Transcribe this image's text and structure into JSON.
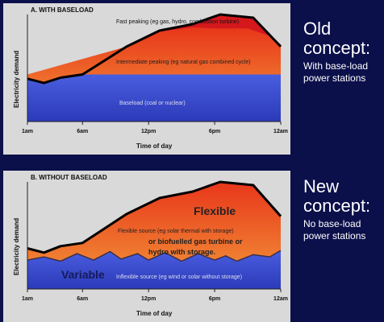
{
  "chart_data": [
    {
      "type": "area",
      "title": "A. WITH BASELOAD",
      "xlabel": "Time of day",
      "ylabel": "Electricity demand",
      "x_ticks": [
        "1am",
        "6am",
        "12pm",
        "6pm",
        "12am"
      ],
      "series": [
        {
          "name": "Baseload (coal or nuclear)",
          "color": "#3b4fd0",
          "level": 0.44
        },
        {
          "name": "Intermediate peaking (eg natural gas combined cycle)",
          "color": "#ee6a18"
        },
        {
          "name": "Fast peaking (eg gas, hydro, combustion turbine)",
          "color": "#d4181c"
        }
      ],
      "demand_curve": [
        [
          0,
          0.4
        ],
        [
          1.5,
          0.36
        ],
        [
          3,
          0.41
        ],
        [
          5,
          0.44
        ],
        [
          9,
          0.7
        ],
        [
          12,
          0.85
        ],
        [
          15,
          0.91
        ],
        [
          17.5,
          1.0
        ],
        [
          20.5,
          0.97
        ],
        [
          23,
          0.7
        ]
      ],
      "intermediate_cap": [
        [
          0,
          0.44
        ],
        [
          9,
          0.7
        ],
        [
          12,
          0.84
        ],
        [
          15,
          0.88
        ],
        [
          17,
          0.87
        ],
        [
          20,
          0.87
        ],
        [
          22,
          0.8
        ],
        [
          23,
          0.72
        ]
      ]
    },
    {
      "type": "area",
      "title": "B. WITHOUT BASELOAD",
      "xlabel": "Time of day",
      "ylabel": "Electricity demand",
      "x_ticks": [
        "1am",
        "6am",
        "12pm",
        "6pm",
        "12am"
      ],
      "series": [
        {
          "name": "Inflexible source (eg wind or solar without storage)",
          "color": "#3b4fd0"
        },
        {
          "name": "Flexible source (eg solar thermal with storage)",
          "color": "#ee6a18"
        }
      ],
      "demand_curve": [
        [
          0,
          0.38
        ],
        [
          1.5,
          0.34
        ],
        [
          3,
          0.4
        ],
        [
          5,
          0.43
        ],
        [
          9,
          0.7
        ],
        [
          12,
          0.85
        ],
        [
          15,
          0.91
        ],
        [
          17.5,
          1.0
        ],
        [
          20.5,
          0.97
        ],
        [
          23,
          0.68
        ]
      ],
      "variable_line": [
        [
          0,
          0.27
        ],
        [
          1.5,
          0.3
        ],
        [
          3,
          0.26
        ],
        [
          4.5,
          0.33
        ],
        [
          6,
          0.27
        ],
        [
          7.5,
          0.35
        ],
        [
          8.5,
          0.28
        ],
        [
          10,
          0.33
        ],
        [
          11,
          0.27
        ],
        [
          12.5,
          0.34
        ],
        [
          14,
          0.26
        ],
        [
          15.5,
          0.33
        ],
        [
          17,
          0.27
        ],
        [
          18,
          0.31
        ],
        [
          19,
          0.26
        ],
        [
          20.5,
          0.32
        ],
        [
          22,
          0.3
        ],
        [
          23,
          0.36
        ]
      ],
      "annotations": [
        "Flexible",
        "or biofuelled gas turbine or",
        "hydro with storage",
        "Variable"
      ]
    }
  ],
  "panel_a": {
    "title": "A. WITH BASELOAD",
    "label_fast": "Fast peaking (eg gas, hydro, combustion turbine)",
    "label_intermediate": "Intermediate peaking (eg natural gas combined cycle)",
    "label_base": "Baseload (coal or nuclear)",
    "ylabel": "Electricity demand",
    "xlabel": "Time of day",
    "ticks": [
      "1am",
      "6am",
      "12pm",
      "6pm",
      "12am"
    ]
  },
  "panel_b": {
    "title": "B. WITHOUT BASELOAD",
    "label_flexible_big": "Flexible",
    "label_flexible_small": "Flexible source (eg solar thermal with storage)",
    "label_flexible_line2": "or biofuelled gas turbine or",
    "label_flexible_line3": "hydro with storage.",
    "label_variable_big": "Variable",
    "label_inflexible": "Inflexible source (eg wind or solar without storage)",
    "ylabel": "Electricity demand",
    "xlabel": "Time of day",
    "ticks": [
      "1am",
      "6am",
      "12pm",
      "6pm",
      "12am"
    ]
  },
  "side_a": {
    "big": "Old concept:",
    "small": "With base-load power stations"
  },
  "side_b": {
    "big": "New concept:",
    "small": "No base-load power stations"
  },
  "colors": {
    "background": "#0b0f4a",
    "panel": "#d9d9d9",
    "base": "#3b4fd0",
    "intermediate": "#ee6a18",
    "fast": "#d4181c",
    "curve": "#000000"
  }
}
